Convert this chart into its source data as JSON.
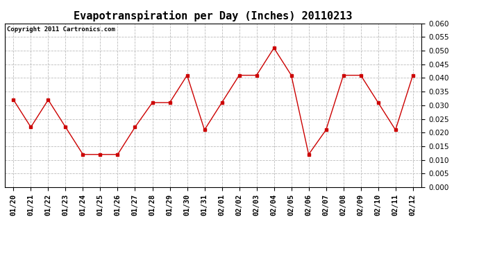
{
  "title": "Evapotranspiration per Day (Inches) 20110213",
  "copyright_text": "Copyright 2011 Cartronics.com",
  "x_labels": [
    "01/20",
    "01/21",
    "01/22",
    "01/23",
    "01/24",
    "01/25",
    "01/26",
    "01/27",
    "01/28",
    "01/29",
    "01/30",
    "01/31",
    "02/01",
    "02/02",
    "02/03",
    "02/04",
    "02/05",
    "02/06",
    "02/07",
    "02/08",
    "02/09",
    "02/10",
    "02/11",
    "02/12"
  ],
  "y_values": [
    0.032,
    0.022,
    0.032,
    0.022,
    0.012,
    0.012,
    0.012,
    0.022,
    0.031,
    0.031,
    0.041,
    0.021,
    0.031,
    0.041,
    0.041,
    0.051,
    0.041,
    0.012,
    0.021,
    0.041,
    0.041,
    0.031,
    0.021,
    0.041
  ],
  "line_color": "#cc0000",
  "marker": "s",
  "marker_size": 3,
  "ylim": [
    0.0,
    0.06
  ],
  "yticks": [
    0.0,
    0.005,
    0.01,
    0.015,
    0.02,
    0.025,
    0.03,
    0.035,
    0.04,
    0.045,
    0.05,
    0.055,
    0.06
  ],
  "grid_color": "#bbbbbb",
  "background_color": "#ffffff",
  "title_fontsize": 11,
  "copyright_fontsize": 6.5,
  "tick_fontsize": 7.5,
  "ylabel_fontsize": 7.5
}
